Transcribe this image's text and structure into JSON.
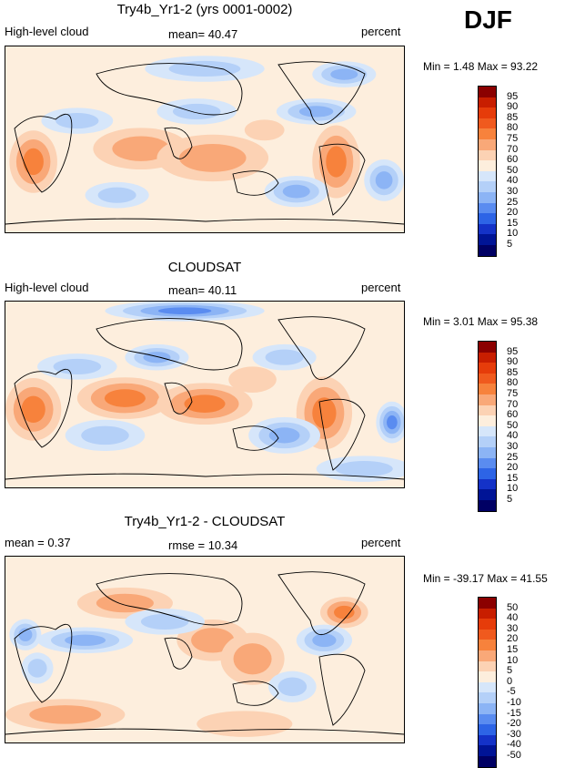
{
  "season": "DJF",
  "panels": [
    {
      "title": "Try4b_Yr1-2 (yrs 0001-0002)",
      "left_label": "High-level cloud",
      "center_label": "mean=  40.47",
      "right_label": "percent",
      "minmax": "Min =    1.48  Max =   93.22"
    },
    {
      "title": "CLOUDSAT",
      "left_label": "High-level cloud",
      "center_label": "mean=  40.11",
      "right_label": "percent",
      "minmax": "Min =    3.01  Max =   95.38"
    },
    {
      "title": "Try4b_Yr1-2 - CLOUDSAT",
      "left_label": "mean =   0.37",
      "center_label": "rmse =  10.34",
      "right_label": "percent",
      "minmax": "Min = -39.17  Max =   41.55"
    }
  ],
  "chart_data": [
    {
      "type": "heatmap",
      "title": "Try4b_Yr1-2 (yrs 0001-0002)",
      "variable": "High-level cloud",
      "units": "percent",
      "mean": 40.47,
      "min": 1.48,
      "max": 93.22,
      "colorbar_levels": [
        "95",
        "90",
        "85",
        "80",
        "75",
        "70",
        "60",
        "50",
        "40",
        "30",
        "25",
        "20",
        "15",
        "10",
        "5"
      ],
      "colorbar_colors": [
        "#8b0000",
        "#c81e00",
        "#e63c0a",
        "#f05a1e",
        "#f7823c",
        "#f9a878",
        "#fcd2b4",
        "#fdeedd",
        "#d6e6fa",
        "#b4d0f8",
        "#8cb4f5",
        "#5a8cf0",
        "#2d64e6",
        "#1432c8",
        "#001496",
        "#000064"
      ]
    },
    {
      "type": "heatmap",
      "title": "CLOUDSAT",
      "variable": "High-level cloud",
      "units": "percent",
      "mean": 40.11,
      "min": 3.01,
      "max": 95.38,
      "colorbar_levels": [
        "95",
        "90",
        "85",
        "80",
        "75",
        "70",
        "60",
        "50",
        "40",
        "30",
        "25",
        "20",
        "15",
        "10",
        "5"
      ],
      "colorbar_colors": [
        "#8b0000",
        "#c81e00",
        "#e63c0a",
        "#f05a1e",
        "#f7823c",
        "#f9a878",
        "#fcd2b4",
        "#fdeedd",
        "#d6e6fa",
        "#b4d0f8",
        "#8cb4f5",
        "#5a8cf0",
        "#2d64e6",
        "#1432c8",
        "#001496",
        "#000064"
      ]
    },
    {
      "type": "heatmap",
      "title": "Try4b_Yr1-2 - CLOUDSAT",
      "units": "percent",
      "mean": 0.37,
      "rmse": 10.34,
      "min": -39.17,
      "max": 41.55,
      "colorbar_levels": [
        "50",
        "40",
        "30",
        "20",
        "15",
        "10",
        "5",
        "0",
        "-5",
        "-10",
        "-15",
        "-20",
        "-30",
        "-40",
        "-50"
      ],
      "colorbar_colors": [
        "#8b0000",
        "#c81e00",
        "#e63c0a",
        "#f05a1e",
        "#f7823c",
        "#f9a878",
        "#fcd2b4",
        "#fdeedd",
        "#d6e6fa",
        "#b4d0f8",
        "#8cb4f5",
        "#5a8cf0",
        "#2d64e6",
        "#1432c8",
        "#001496",
        "#000064"
      ]
    }
  ]
}
